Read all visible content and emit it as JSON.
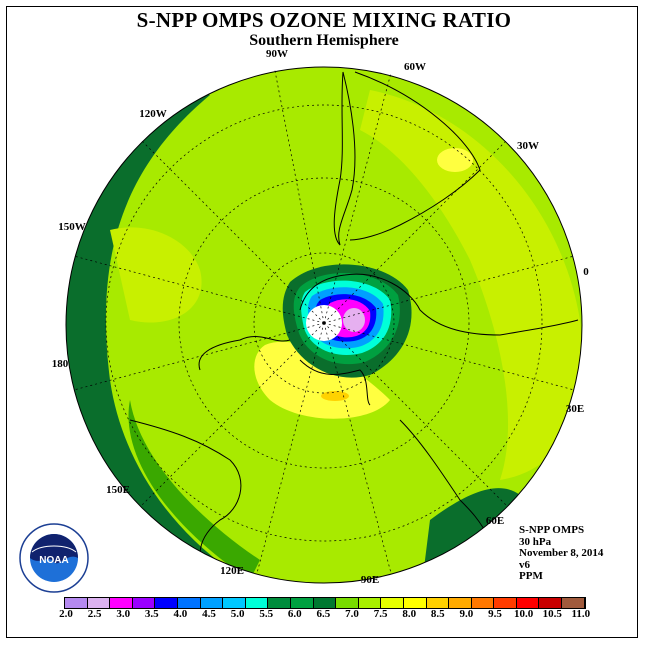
{
  "title": "S-NPP OMPS OZONE MIXING RATIO",
  "subtitle": "Southern Hemisphere",
  "longitude_labels": [
    "90W",
    "60W",
    "30W",
    "0",
    "30E",
    "60E",
    "90E",
    "120E",
    "150E",
    "180",
    "150W",
    "120W"
  ],
  "info": {
    "instrument": "S-NPP OMPS",
    "level": "30 hPa",
    "date": "November 8, 2014",
    "version": "v6",
    "units": "PPM"
  },
  "logo_text": "NOAA",
  "colorbar": {
    "colors": [
      "#b58af0",
      "#dcb2f0",
      "#ff00ff",
      "#9b00ff",
      "#0000ff",
      "#0073ff",
      "#00a0ff",
      "#00c8ff",
      "#00ffd8",
      "#008c3c",
      "#00a040",
      "#007830",
      "#78dc00",
      "#a8f000",
      "#e6ff00",
      "#ffff00",
      "#ffd000",
      "#ffaa00",
      "#ff7800",
      "#ff3c00",
      "#ff0000",
      "#c80000",
      "#a05a3c"
    ],
    "ticks": [
      "2.0",
      "2.5",
      "3.0",
      "3.5",
      "4.0",
      "4.5",
      "5.0",
      "5.5",
      "6.0",
      "6.5",
      "7.0",
      "7.5",
      "8.0",
      "8.5",
      "9.0",
      "9.5",
      "10.0",
      "10.5",
      "11.0"
    ]
  },
  "field_colors": {
    "band_dark_green": "#0a6e2c",
    "green": "#5ad200",
    "yellow_green": "#c8f000",
    "light_green": "#9be600",
    "yellow": "#ffff00",
    "orange_spot": "#ffd200",
    "inner_dark": "#008040",
    "cyan": "#00ffd8",
    "blue": "#0073ff",
    "magenta": "#ff00ff",
    "purple": "#9b00ff"
  }
}
